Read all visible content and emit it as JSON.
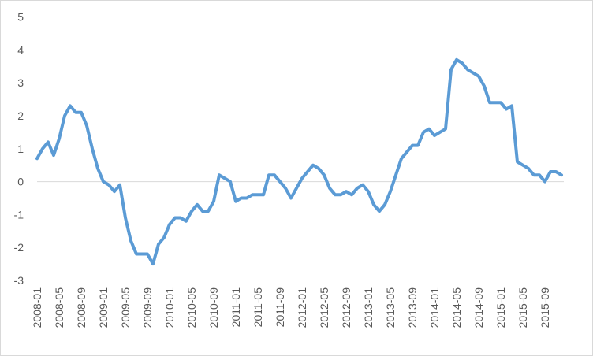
{
  "chart_data": {
    "type": "line",
    "title": "",
    "xlabel": "",
    "ylabel": "",
    "ylim": [
      -3,
      5
    ],
    "yticks": [
      5,
      4,
      3,
      2,
      1,
      0,
      -1,
      -2,
      -3
    ],
    "grid": false,
    "legend": "none",
    "line_color": "#5b9bd5",
    "zero_line_color": "#d9d9d9",
    "tick_label_color": "#595959",
    "x_tick_labels": [
      "2008-01",
      "2008-05",
      "2008-09",
      "2009-01",
      "2009-05",
      "2009-09",
      "2010-01",
      "2010-05",
      "2010-09",
      "2011-01",
      "2011-05",
      "2011-09",
      "2012-01",
      "2012-05",
      "2012-09",
      "2013-01",
      "2013-05",
      "2013-09",
      "2014-01",
      "2014-05",
      "2014-09",
      "2015-01",
      "2015-05",
      "2015-09"
    ],
    "series": [
      {
        "x": [
          "2008-01",
          "2008-02",
          "2008-03",
          "2008-04",
          "2008-05",
          "2008-06",
          "2008-07",
          "2008-08",
          "2008-09",
          "2008-10",
          "2008-11",
          "2008-12",
          "2009-01",
          "2009-02",
          "2009-03",
          "2009-04",
          "2009-05",
          "2009-06",
          "2009-07",
          "2009-08",
          "2009-09",
          "2009-10",
          "2009-11",
          "2009-12",
          "2010-01",
          "2010-02",
          "2010-03",
          "2010-04",
          "2010-05",
          "2010-06",
          "2010-07",
          "2010-08",
          "2010-09",
          "2010-10",
          "2010-11",
          "2010-12",
          "2011-01",
          "2011-02",
          "2011-03",
          "2011-04",
          "2011-05",
          "2011-06",
          "2011-07",
          "2011-08",
          "2011-09",
          "2011-10",
          "2011-11",
          "2011-12",
          "2012-01",
          "2012-02",
          "2012-03",
          "2012-04",
          "2012-05",
          "2012-06",
          "2012-07",
          "2012-08",
          "2012-09",
          "2012-10",
          "2012-11",
          "2012-12",
          "2013-01",
          "2013-02",
          "2013-03",
          "2013-04",
          "2013-05",
          "2013-06",
          "2013-07",
          "2013-08",
          "2013-09",
          "2013-10",
          "2013-11",
          "2013-12",
          "2014-01",
          "2014-02",
          "2014-03",
          "2014-04",
          "2014-05",
          "2014-06",
          "2014-07",
          "2014-08",
          "2014-09",
          "2014-10",
          "2014-11",
          "2014-12",
          "2015-01",
          "2015-02",
          "2015-03",
          "2015-04",
          "2015-05",
          "2015-06",
          "2015-07",
          "2015-08",
          "2015-09",
          "2015-10",
          "2015-11",
          "2015-12"
        ],
        "values": [
          0.7,
          1.0,
          1.2,
          0.8,
          1.3,
          2.0,
          2.3,
          2.1,
          2.1,
          1.7,
          1.0,
          0.4,
          0.0,
          -0.1,
          -0.3,
          -0.1,
          -1.1,
          -1.8,
          -2.2,
          -2.2,
          -2.2,
          -2.5,
          -1.9,
          -1.7,
          -1.3,
          -1.1,
          -1.1,
          -1.2,
          -0.9,
          -0.7,
          -0.9,
          -0.9,
          -0.6,
          0.2,
          0.1,
          0.0,
          -0.6,
          -0.5,
          -0.5,
          -0.4,
          -0.4,
          -0.4,
          0.2,
          0.2,
          0.0,
          -0.2,
          -0.5,
          -0.2,
          0.1,
          0.3,
          0.5,
          0.4,
          0.2,
          -0.2,
          -0.4,
          -0.4,
          -0.3,
          -0.4,
          -0.2,
          -0.1,
          -0.3,
          -0.7,
          -0.9,
          -0.7,
          -0.3,
          0.2,
          0.7,
          0.9,
          1.1,
          1.1,
          1.5,
          1.6,
          1.4,
          1.5,
          1.6,
          3.4,
          3.7,
          3.6,
          3.4,
          3.3,
          3.2,
          2.9,
          2.4,
          2.4,
          2.4,
          2.2,
          2.3,
          0.6,
          0.5,
          0.4,
          0.2,
          0.2,
          0.0,
          0.3,
          0.3,
          0.2
        ]
      }
    ]
  }
}
